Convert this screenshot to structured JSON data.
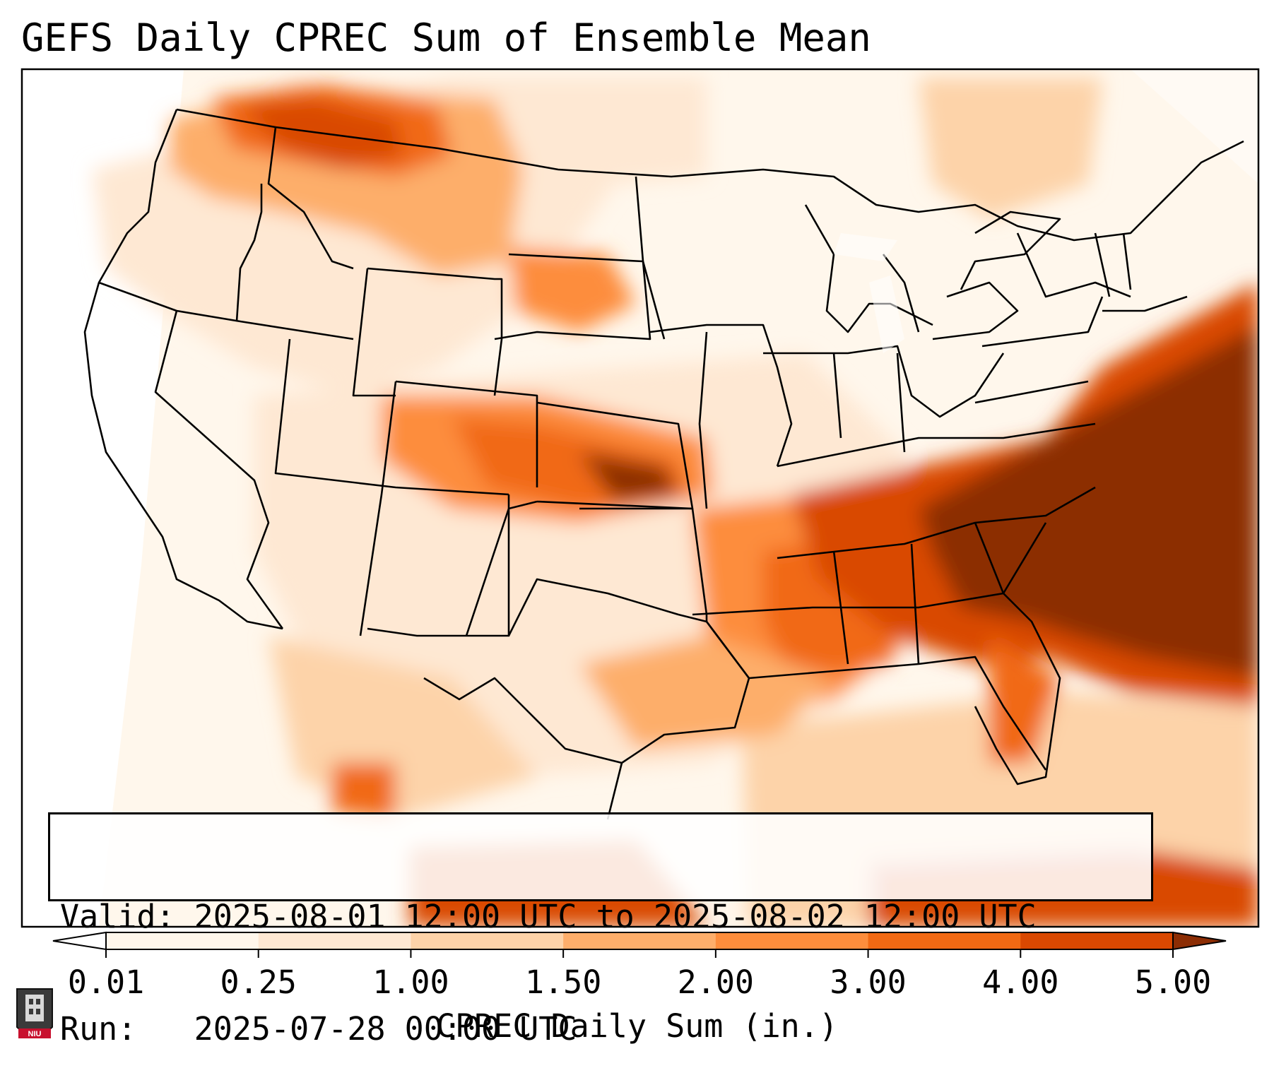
{
  "title": "GEFS Daily CPREC Sum of Ensemble Mean",
  "info": {
    "valid_line": "Valid: 2025-08-01 12:00 UTC to 2025-08-02 12:00 UTC",
    "run_line": "Run:   2025-07-28 00:00 UTC"
  },
  "colorbar": {
    "label": "CPREC Daily Sum (in.)",
    "ticks": [
      "0.01",
      "0.25",
      "1.00",
      "1.50",
      "2.00",
      "3.00",
      "4.00",
      "5.00"
    ],
    "colors": [
      "#fff7ec",
      "#fee8d3",
      "#fdd3a9",
      "#fdae6b",
      "#fd8d3c",
      "#f16913",
      "#d94801",
      "#8c2d04"
    ],
    "extend": "both"
  },
  "logo": {
    "text": "NIU",
    "icon": "niu-tower-shield-icon"
  },
  "map": {
    "region": "Contiguous United States",
    "icon": "us-precip-map"
  }
}
